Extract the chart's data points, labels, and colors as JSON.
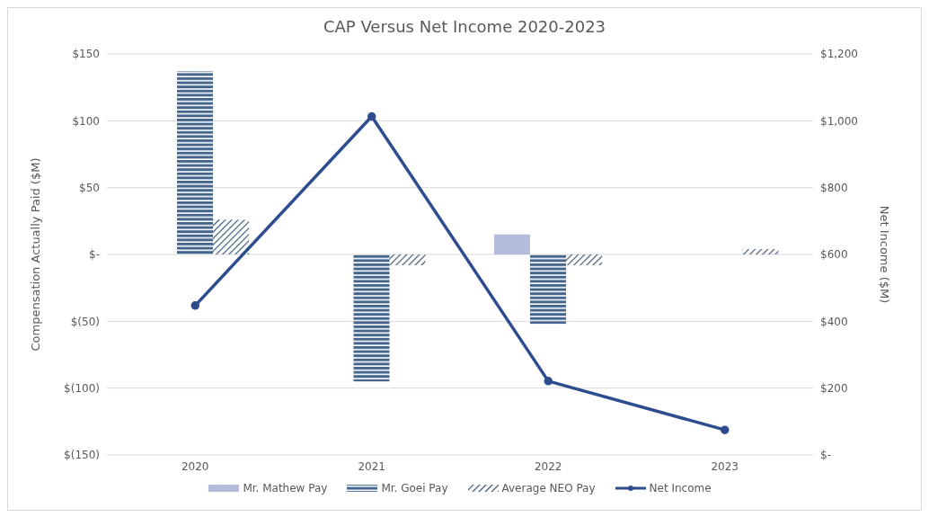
{
  "chart_data": {
    "type": "bar",
    "title": "CAP Versus Net Income 2020-2023",
    "ylabel": "Compensation Actually Paid ($M)",
    "y2label": "Net Income ($M)",
    "categories": [
      "2020",
      "2021",
      "2022",
      "2023"
    ],
    "series": [
      {
        "name": "Mr. Mathew Pay",
        "color": "#b4bcdc",
        "values": [
          null,
          null,
          15,
          null
        ]
      },
      {
        "name": "Mr. Goei Pay",
        "color": "#44658c",
        "values": [
          137,
          -95,
          -52,
          null
        ]
      },
      {
        "name": "Average NEO Pay",
        "color": "#3a5570",
        "values": [
          26,
          -8,
          -8,
          4
        ]
      },
      {
        "name": "Net Income",
        "type": "line",
        "axis": "y2",
        "color": "#2e4d8f",
        "values": [
          447,
          1013,
          221,
          75
        ]
      }
    ],
    "ylim": [
      -150,
      150
    ],
    "yticks": [
      {
        "value": -150,
        "label": "$(150)"
      },
      {
        "value": -100,
        "label": "$(100)"
      },
      {
        "value": -50,
        "label": "$(50)"
      },
      {
        "value": 0,
        "label": "$-"
      },
      {
        "value": 50,
        "label": "$50"
      },
      {
        "value": 100,
        "label": "$100"
      },
      {
        "value": 150,
        "label": "$150"
      }
    ],
    "y2lim": [
      0,
      1200
    ],
    "y2ticks": [
      {
        "value": 0,
        "label": "$-"
      },
      {
        "value": 200,
        "label": "$200"
      },
      {
        "value": 400,
        "label": "$400"
      },
      {
        "value": 600,
        "label": "$600"
      },
      {
        "value": 800,
        "label": "$800"
      },
      {
        "value": 1000,
        "label": "$1,000"
      },
      {
        "value": 1200,
        "label": "$1,200"
      }
    ],
    "grid": "y",
    "legend": "bottom",
    "marker": "circle",
    "line_style": "solid"
  }
}
